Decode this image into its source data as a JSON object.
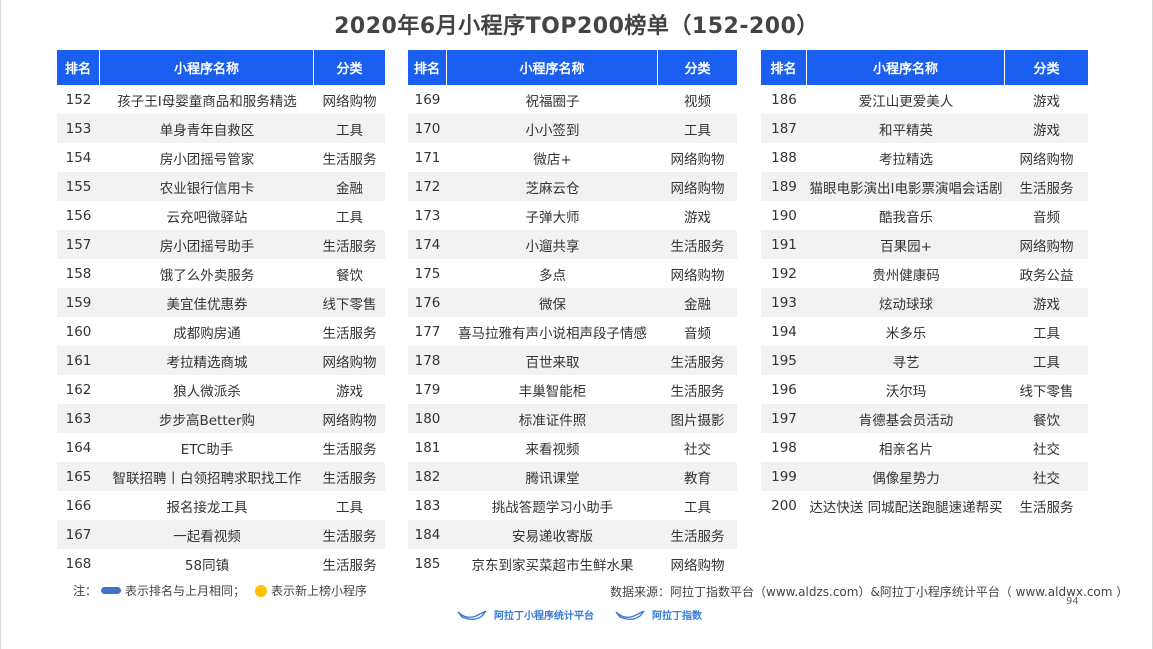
{
  "title": "2020年6月小程序TOP200榜单（152-200）",
  "headers": {
    "rank": "排名",
    "name": "小程序名称",
    "category": "分类"
  },
  "colors": {
    "header_bg": "#1a5ff0",
    "alt_row": "#f2f2f2",
    "pill": "#4472c4",
    "dot": "#ffc000"
  },
  "tables": [
    {
      "rows": [
        {
          "rank": "152",
          "name": "孩子王I母婴童商品和服务精选",
          "category": "网络购物"
        },
        {
          "rank": "153",
          "name": "单身青年自救区",
          "category": "工具"
        },
        {
          "rank": "154",
          "name": "房小团摇号管家",
          "category": "生活服务"
        },
        {
          "rank": "155",
          "name": "农业银行信用卡",
          "category": "金融"
        },
        {
          "rank": "156",
          "name": "云充吧微驿站",
          "category": "工具"
        },
        {
          "rank": "157",
          "name": "房小团摇号助手",
          "category": "生活服务"
        },
        {
          "rank": "158",
          "name": "饿了么外卖服务",
          "category": "餐饮"
        },
        {
          "rank": "159",
          "name": "美宜佳优惠券",
          "category": "线下零售"
        },
        {
          "rank": "160",
          "name": "成都购房通",
          "category": "生活服务"
        },
        {
          "rank": "161",
          "name": "考拉精选商城",
          "category": "网络购物"
        },
        {
          "rank": "162",
          "name": "狼人微派杀",
          "category": "游戏"
        },
        {
          "rank": "163",
          "name": "步步高Better购",
          "category": "网络购物"
        },
        {
          "rank": "164",
          "name": "ETC助手",
          "category": "生活服务"
        },
        {
          "rank": "165",
          "name": "智联招聘丨白领招聘求职找工作",
          "category": "生活服务"
        },
        {
          "rank": "166",
          "name": "报名接龙工具",
          "category": "工具"
        },
        {
          "rank": "167",
          "name": "一起看视频",
          "category": "生活服务"
        },
        {
          "rank": "168",
          "name": "58同镇",
          "category": "生活服务"
        }
      ]
    },
    {
      "rows": [
        {
          "rank": "169",
          "name": "祝福圈子",
          "category": "视频"
        },
        {
          "rank": "170",
          "name": "小小签到",
          "category": "工具"
        },
        {
          "rank": "171",
          "name": "微店+",
          "category": "网络购物"
        },
        {
          "rank": "172",
          "name": "芝麻云仓",
          "category": "网络购物"
        },
        {
          "rank": "173",
          "name": "子弹大师",
          "category": "游戏"
        },
        {
          "rank": "174",
          "name": "小遛共享",
          "category": "生活服务"
        },
        {
          "rank": "175",
          "name": "多点",
          "category": "网络购物"
        },
        {
          "rank": "176",
          "name": "微保",
          "category": "金融"
        },
        {
          "rank": "177",
          "name": "喜马拉雅有声小说相声段子情感",
          "category": "音频"
        },
        {
          "rank": "178",
          "name": "百世来取",
          "category": "生活服务"
        },
        {
          "rank": "179",
          "name": "丰巢智能柜",
          "category": "生活服务"
        },
        {
          "rank": "180",
          "name": "标准证件照",
          "category": "图片摄影"
        },
        {
          "rank": "181",
          "name": "来看视频",
          "category": "社交"
        },
        {
          "rank": "182",
          "name": "腾讯课堂",
          "category": "教育"
        },
        {
          "rank": "183",
          "name": "挑战答题学习小助手",
          "category": "工具"
        },
        {
          "rank": "184",
          "name": "安易递收寄版",
          "category": "生活服务"
        },
        {
          "rank": "185",
          "name": "京东到家买菜超市生鲜水果",
          "category": "网络购物"
        }
      ]
    },
    {
      "rows": [
        {
          "rank": "186",
          "name": "爱江山更爱美人",
          "category": "游戏"
        },
        {
          "rank": "187",
          "name": "和平精英",
          "category": "游戏"
        },
        {
          "rank": "188",
          "name": "考拉精选",
          "category": "网络购物"
        },
        {
          "rank": "189",
          "name": "猫眼电影演出I电影票演唱会话剧",
          "category": "生活服务"
        },
        {
          "rank": "190",
          "name": "酷我音乐",
          "category": "音频"
        },
        {
          "rank": "191",
          "name": "百果园+",
          "category": "网络购物"
        },
        {
          "rank": "192",
          "name": "贵州健康码",
          "category": "政务公益"
        },
        {
          "rank": "193",
          "name": "炫动球球",
          "category": "游戏"
        },
        {
          "rank": "194",
          "name": "米多乐",
          "category": "工具"
        },
        {
          "rank": "195",
          "name": "寻艺",
          "category": "工具"
        },
        {
          "rank": "196",
          "name": "沃尔玛",
          "category": "线下零售"
        },
        {
          "rank": "197",
          "name": "肯德基会员活动",
          "category": "餐饮"
        },
        {
          "rank": "198",
          "name": "相亲名片",
          "category": "社交"
        },
        {
          "rank": "199",
          "name": "偶像星势力",
          "category": "社交"
        },
        {
          "rank": "200",
          "name": "达达快送 同城配送跑腿速递帮买",
          "category": "生活服务"
        }
      ]
    }
  ],
  "note": {
    "prefix": "注：",
    "same_rank": "表示排名与上月相同；",
    "new_entry": "表示新上榜小程序"
  },
  "source": "数据来源：阿拉丁指数平台（www.aldzs.com）&阿拉丁小程序统计平台（ www.aldwx.com ）",
  "page_number": "94",
  "logos": {
    "stats_platform": "阿拉丁小程序统计平台",
    "index_platform": "阿拉丁指数"
  }
}
